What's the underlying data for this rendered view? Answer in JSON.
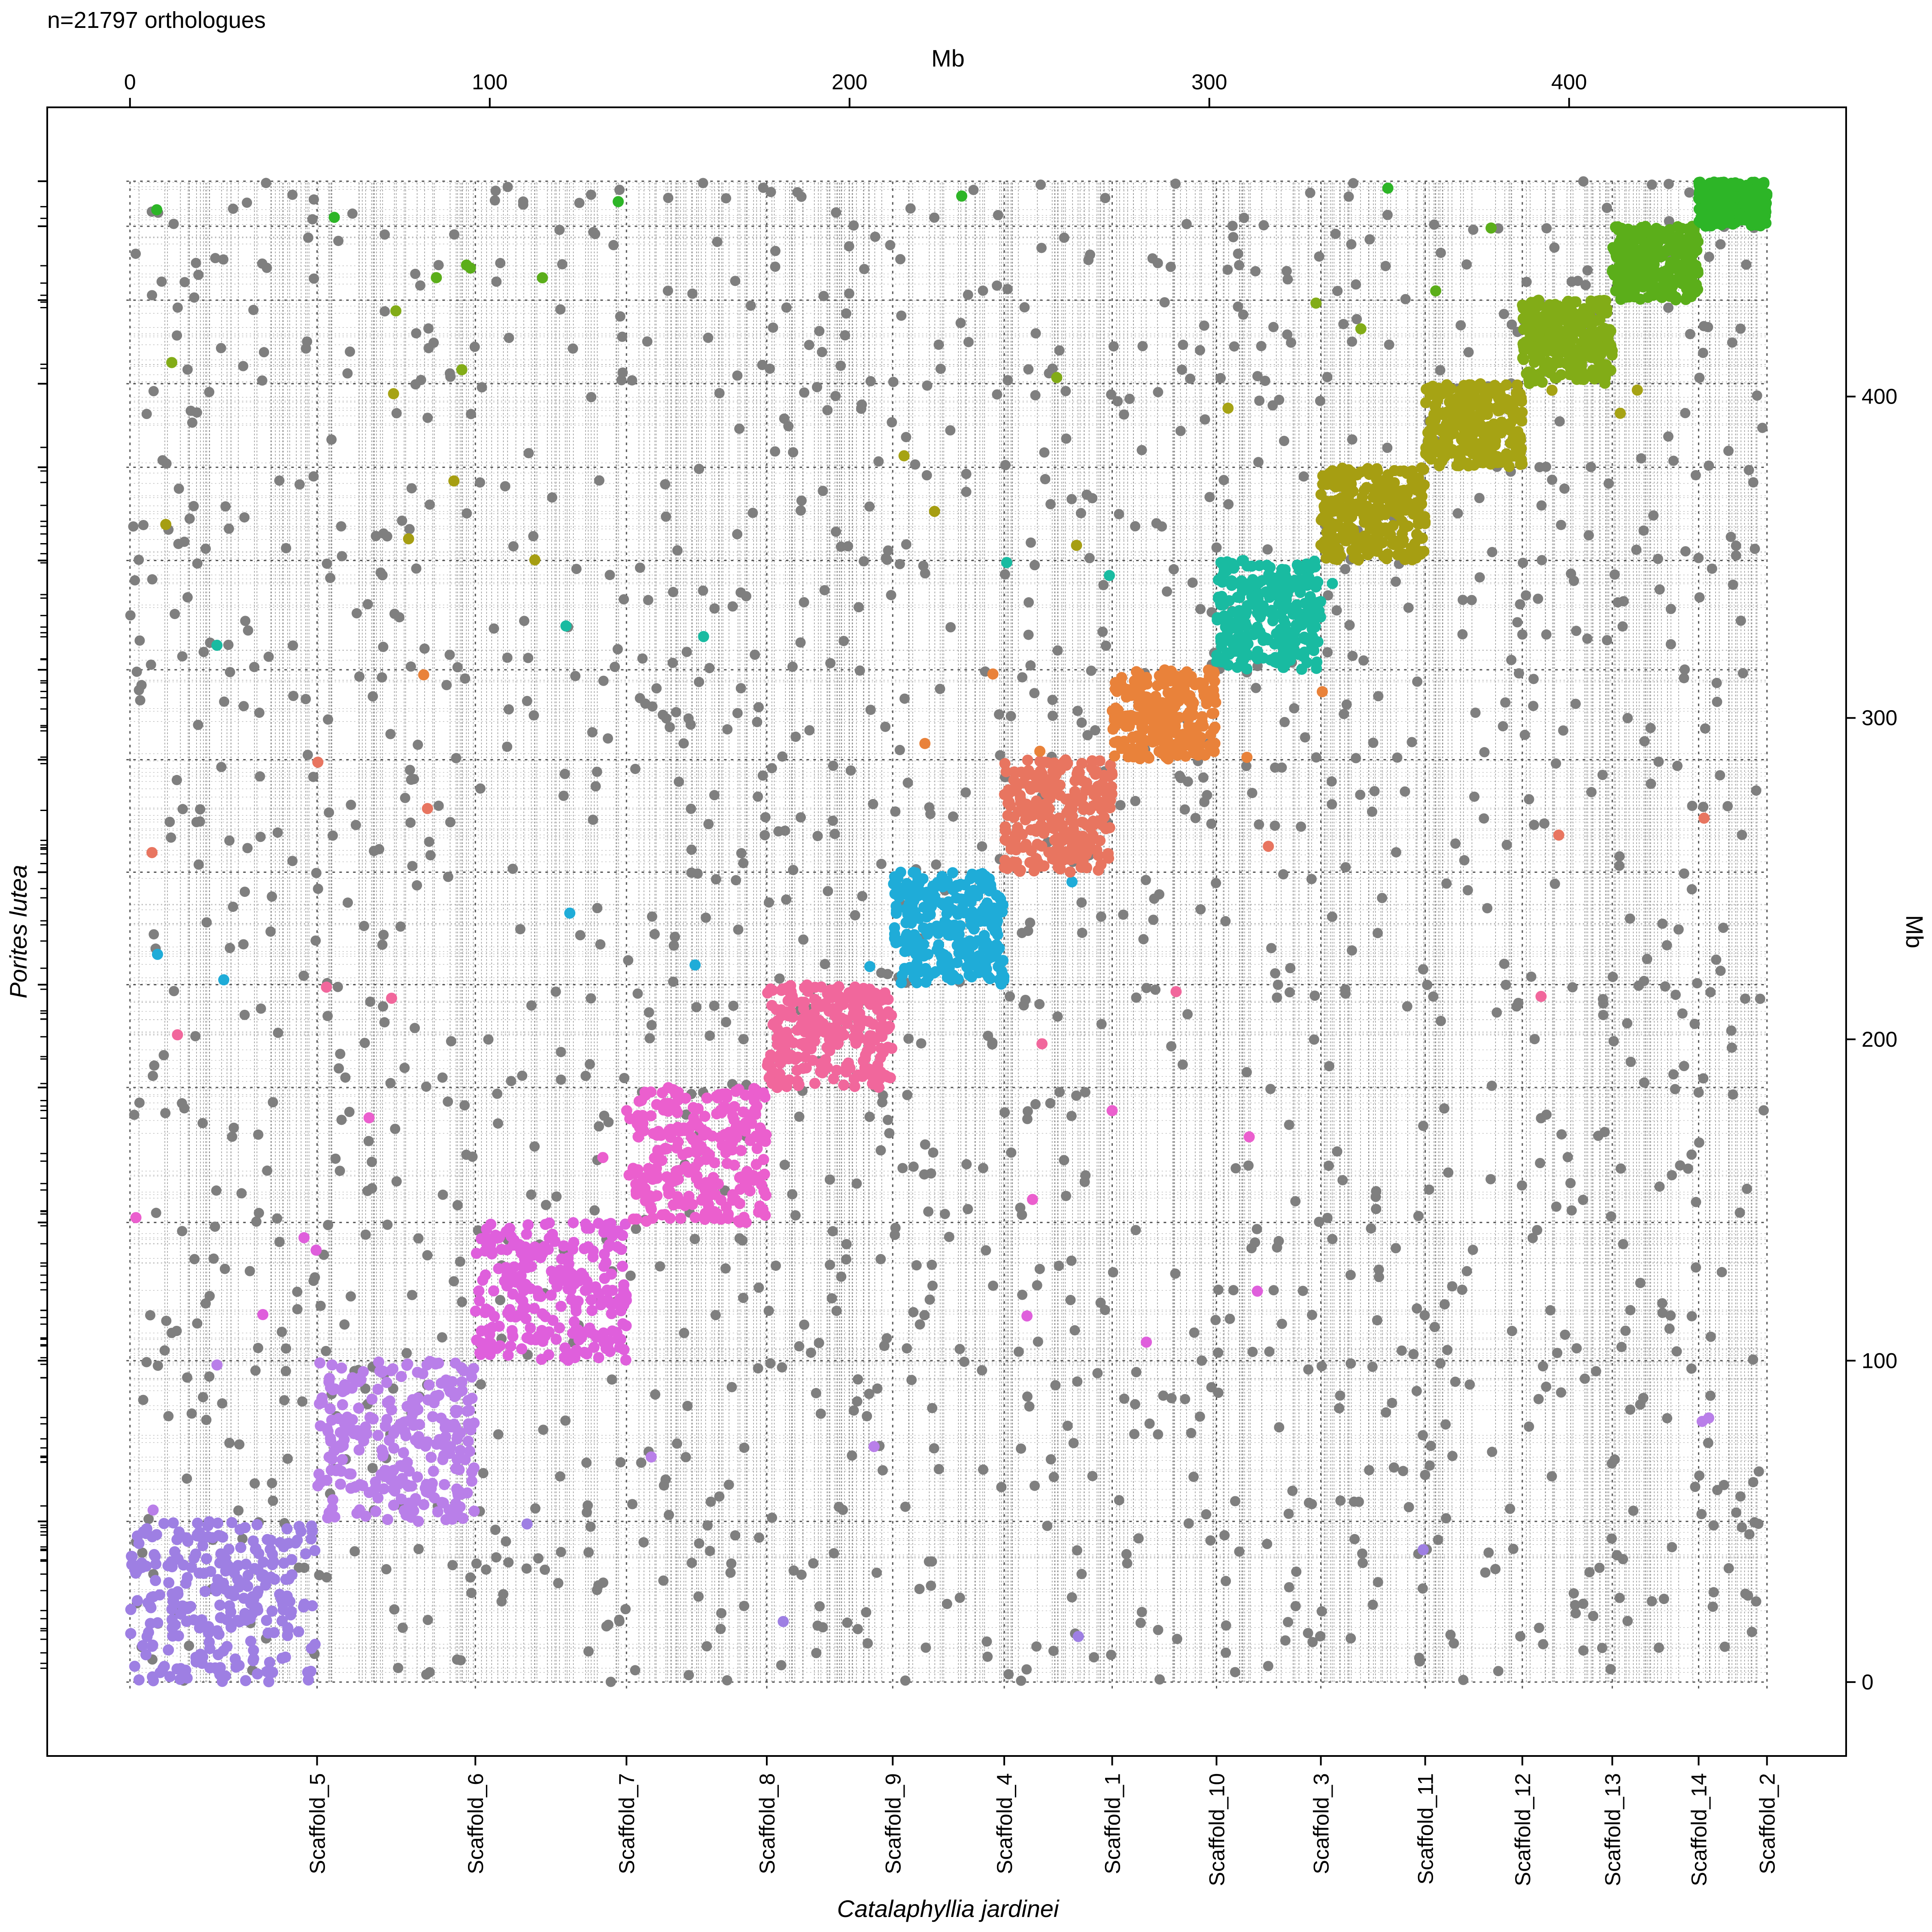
{
  "chart_data": {
    "type": "scatter",
    "title": "n=21797 orthologues",
    "top_axis_label": "Mb",
    "right_axis_label": "Mb",
    "xlabel": "Catalaphyllia jardinei",
    "ylabel": "Porites lutea",
    "x_ticks": [
      0,
      100,
      200,
      300,
      400
    ],
    "y_ticks": [
      0,
      100,
      200,
      300,
      400
    ],
    "xlim": [
      -23,
      477
    ],
    "ylim": [
      -23,
      490
    ],
    "x_scaffolds": [
      {
        "name": "Scaffold_5",
        "end": 52.0
      },
      {
        "name": "Scaffold_6",
        "end": 96.0
      },
      {
        "name": "Scaffold_7",
        "end": 138.0
      },
      {
        "name": "Scaffold_8",
        "end": 177.0
      },
      {
        "name": "Scaffold_9",
        "end": 212.0
      },
      {
        "name": "Scaffold_4",
        "end": 243.0
      },
      {
        "name": "Scaffold_1",
        "end": 273.0
      },
      {
        "name": "Scaffold_10",
        "end": 302.0
      },
      {
        "name": "Scaffold_3",
        "end": 331.0
      },
      {
        "name": "Scaffold_11",
        "end": 360.0
      },
      {
        "name": "Scaffold_12",
        "end": 387.0
      },
      {
        "name": "Scaffold_13",
        "end": 412.0
      },
      {
        "name": "Scaffold_14",
        "end": 436.0
      },
      {
        "name": "Scaffold_2",
        "end": 455.0
      }
    ],
    "y_scaffold_ends": [
      50,
      100,
      143,
      185,
      217,
      252,
      287,
      315,
      349,
      378,
      404,
      430,
      453,
      467
    ],
    "clusters": [
      {
        "x": [
          0,
          52
        ],
        "y": [
          0,
          50
        ],
        "color": "#9E7FE3"
      },
      {
        "x": [
          52,
          96
        ],
        "y": [
          50,
          100
        ],
        "color": "#B97FE9"
      },
      {
        "x": [
          96,
          138
        ],
        "y": [
          100,
          143
        ],
        "color": "#DF5FDC"
      },
      {
        "x": [
          138,
          177
        ],
        "y": [
          143,
          185
        ],
        "color": "#EB5FCE"
      },
      {
        "x": [
          177,
          212
        ],
        "y": [
          185,
          217
        ],
        "color": "#F1679C"
      },
      {
        "x": [
          212,
          243
        ],
        "y": [
          217,
          252
        ],
        "color": "#1FACD8"
      },
      {
        "x": [
          243,
          273
        ],
        "y": [
          252,
          287
        ],
        "color": "#E87560"
      },
      {
        "x": [
          273,
          302
        ],
        "y": [
          287,
          315
        ],
        "color": "#E9823A"
      },
      {
        "x": [
          302,
          331
        ],
        "y": [
          315,
          349
        ],
        "color": "#19BBA1"
      },
      {
        "x": [
          331,
          360
        ],
        "y": [
          349,
          378
        ],
        "color": "#A69E12"
      },
      {
        "x": [
          360,
          387
        ],
        "y": [
          378,
          404
        ],
        "color": "#A6A314"
      },
      {
        "x": [
          387,
          412
        ],
        "y": [
          404,
          430
        ],
        "color": "#82AC17"
      },
      {
        "x": [
          412,
          436
        ],
        "y": [
          430,
          453
        ],
        "color": "#5BAE1A"
      },
      {
        "x": [
          436,
          455
        ],
        "y": [
          453,
          467
        ],
        "color": "#2DB527"
      }
    ],
    "background_point_color": "#7F7F7F",
    "grid": "dotted"
  }
}
